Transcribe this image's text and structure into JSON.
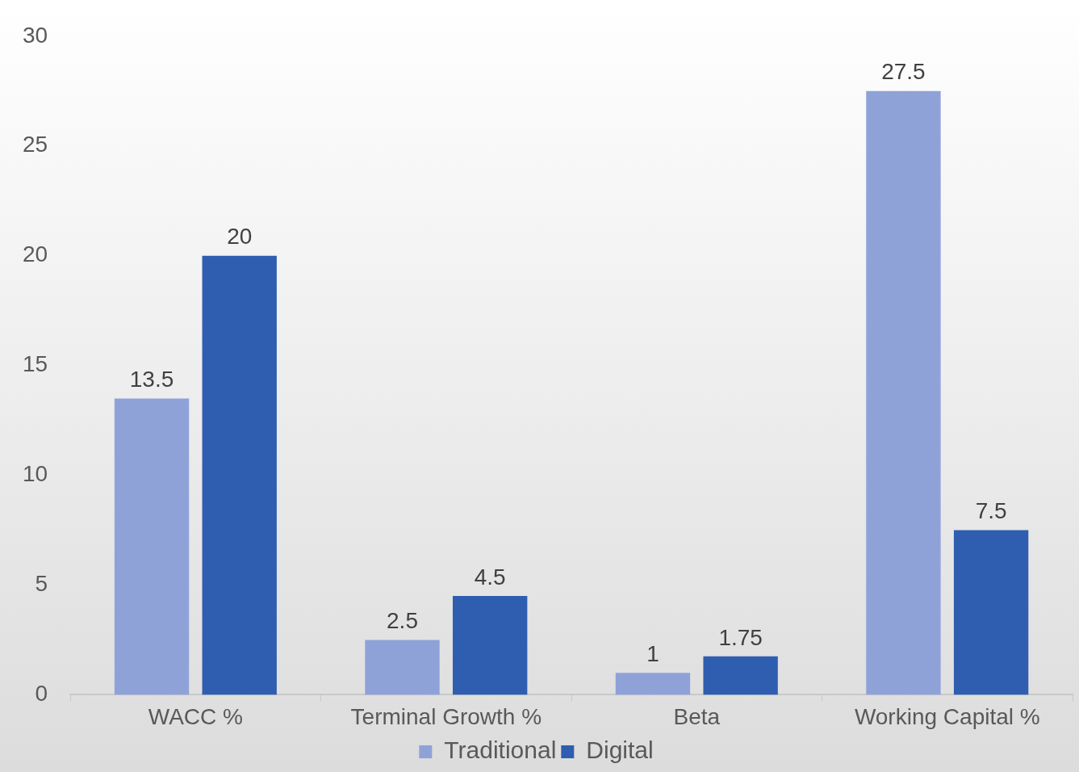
{
  "chart_data": {
    "type": "bar",
    "categories": [
      "WACC %",
      "Terminal Growth %",
      "Beta",
      "Working Capital %"
    ],
    "series": [
      {
        "name": "Traditional",
        "color": "#8fa2d8",
        "values": [
          13.5,
          2.5,
          1,
          27.5
        ]
      },
      {
        "name": "Digital",
        "color": "#2f5db0",
        "values": [
          20,
          4.5,
          1.75,
          7.5
        ]
      }
    ],
    "ylim": [
      0,
      30
    ],
    "yticks": [
      0,
      5,
      10,
      15,
      20,
      25,
      30
    ],
    "grid": false,
    "legend": "bottom",
    "data_labels": true
  }
}
